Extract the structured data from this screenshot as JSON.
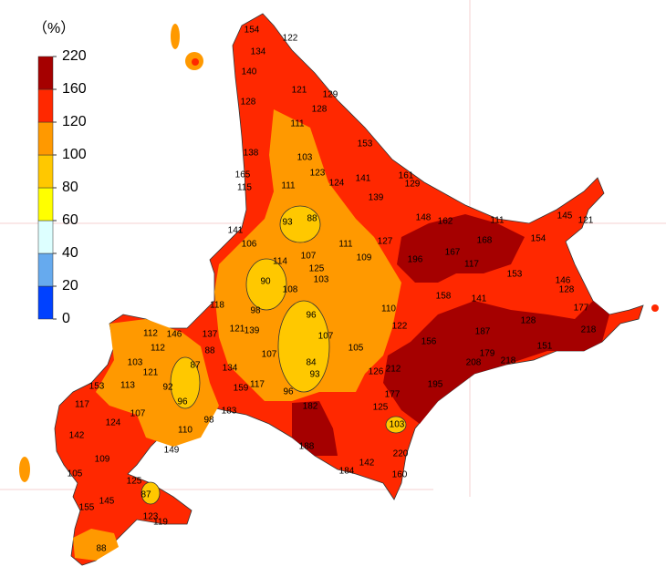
{
  "legend": {
    "title": "（%）",
    "ticks": [
      0,
      20,
      40,
      60,
      80,
      100,
      120,
      160,
      220
    ],
    "colors": [
      "#0041ff",
      "#66aaee",
      "#ddffff",
      "#ffff00",
      "#ffc800",
      "#ff9900",
      "#ff2800",
      "#a50000"
    ]
  },
  "map": {
    "labels": [
      154,
      134,
      122,
      140,
      128,
      121,
      129,
      128,
      111,
      153,
      138,
      103,
      165,
      123,
      141,
      161,
      115,
      111,
      124,
      129,
      139,
      93,
      88,
      148,
      162,
      111,
      145,
      121,
      141,
      106,
      111,
      127,
      168,
      154,
      107,
      114,
      109,
      196,
      167,
      117,
      125,
      153,
      90,
      103,
      108,
      158,
      141,
      146,
      128,
      118,
      98,
      96,
      110,
      177,
      128,
      112,
      146,
      137,
      121,
      139,
      122,
      187,
      218,
      107,
      156,
      112,
      88,
      107,
      105,
      151,
      179,
      208,
      218,
      103,
      87,
      84,
      121,
      134,
      93,
      126,
      212,
      113,
      92,
      117,
      159,
      195,
      96,
      177,
      153,
      96,
      117,
      183,
      182,
      125,
      107,
      98,
      124,
      103,
      110,
      142,
      188,
      149,
      220,
      109,
      142,
      184,
      160,
      105,
      125,
      87,
      155,
      145,
      123,
      119,
      88
    ]
  }
}
